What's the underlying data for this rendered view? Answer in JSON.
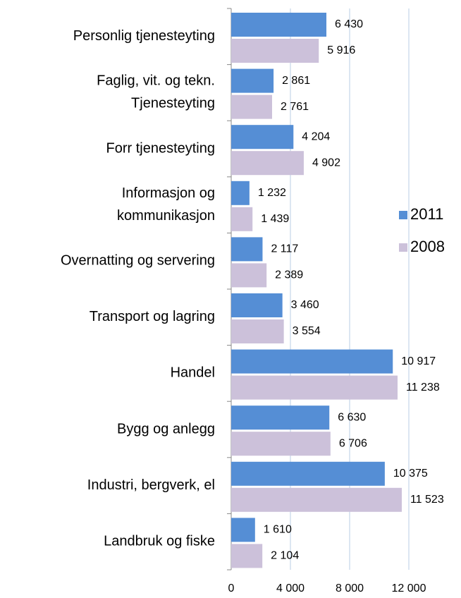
{
  "chart_data": {
    "type": "bar",
    "orientation": "horizontal",
    "categories": [
      [
        "Personlig tjenesteyting"
      ],
      [
        "Faglig, vit. og tekn.",
        "Tjenesteyting"
      ],
      [
        "Forr tjenesteyting"
      ],
      [
        "Informasjon og",
        "kommunikasjon"
      ],
      [
        "Overnatting og servering"
      ],
      [
        "Transport og lagring"
      ],
      [
        "Handel"
      ],
      [
        "Bygg og anlegg"
      ],
      [
        "Industri, bergverk, el"
      ],
      [
        "Landbruk og fiske"
      ]
    ],
    "series": [
      {
        "name": "2011",
        "color": "#558ed5",
        "values": [
          6430,
          2861,
          4204,
          1232,
          2117,
          3460,
          10917,
          6630,
          10375,
          1610
        ],
        "value_labels": [
          "6 430",
          "2 861",
          "4 204",
          "1 232",
          "2 117",
          "3 460",
          "10 917",
          "6 630",
          "10 375",
          "1 610"
        ]
      },
      {
        "name": "2008",
        "color": "#ccc1da",
        "values": [
          5916,
          2761,
          4902,
          1439,
          2389,
          3554,
          11238,
          6706,
          11523,
          2104
        ],
        "value_labels": [
          "5 916",
          "2 761",
          "4 902",
          "1 439",
          "2 389",
          "3 554",
          "11 238",
          "6 706",
          "11 523",
          "2 104"
        ]
      }
    ],
    "xlim": [
      0,
      14000
    ],
    "xticks": [
      0,
      {
        "value": 4000,
        "label": "4 000"
      },
      {
        "value": 8000,
        "label": "8 000"
      },
      {
        "value": 12000,
        "label": "12 000"
      }
    ],
    "grid": true,
    "legend": "right"
  }
}
